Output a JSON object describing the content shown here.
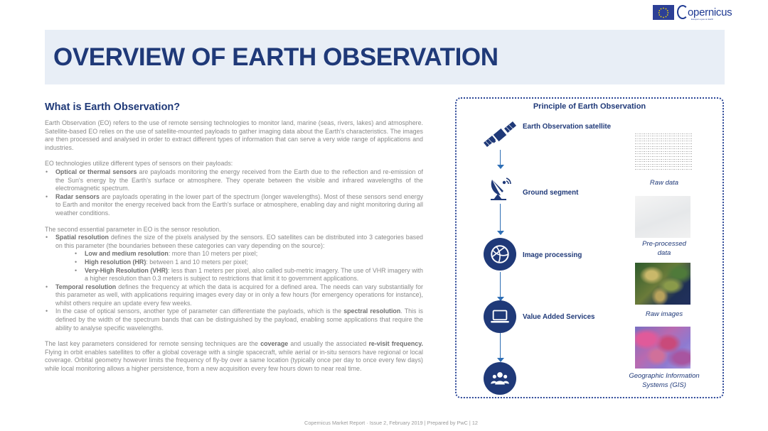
{
  "header": {
    "title": "OVERVIEW OF EARTH OBSERVATION",
    "logo_text": "opernicus",
    "logo_subtitle": "Europe's eyes on Earth"
  },
  "left": {
    "heading": "What is Earth Observation?",
    "intro": "Earth Observation (EO) refers to the use of remote sensing technologies to monitor land, marine (seas, rivers, lakes) and atmosphere. Satellite-based EO relies on the use of satellite-mounted payloads to gather imaging data about the Earth's characteristics. The images are then processed and analysed in order to extract different types of information that can serve a very wide range of applications and industries.",
    "sensors_intro": "EO technologies utilize different types of sensors on their payloads:",
    "sensors": [
      {
        "bold": "Optical or thermal sensors",
        "text": " are payloads monitoring the energy received from the Earth due to the reflection and re-emission of the Sun's energy by the Earth's surface or atmosphere. They operate between the visible and infrared wavelengths of the electromagnetic spectrum."
      },
      {
        "bold": "Radar sensors",
        "text": " are payloads operating in the lower part of the spectrum (longer wavelengths). Most of these sensors send energy to Earth and monitor the energy received back from the Earth's surface or atmosphere, enabling day and night monitoring during all weather conditions."
      }
    ],
    "resolution_intro": "The second essential parameter in EO is the sensor resolution.",
    "spatial": {
      "bold": "Spatial resolution",
      "text": " defines the size of the pixels analysed by the sensors. EO satellites can be distributed into 3 categories based on this parameter (the boundaries between these categories can vary depending on the source):"
    },
    "categories": [
      {
        "bold": "Low and medium resolution",
        "text": ": more than 10 meters per pixel;"
      },
      {
        "bold": "High resolution (HR)",
        "text": ": between 1 and 10 meters per pixel;"
      },
      {
        "bold": "Very-High Resolution (VHR)",
        "text": ": less than 1 meters per pixel, also called sub-metric imagery. The use of VHR imagery with a higher resolution than 0.3 meters is subject to restrictions that limit it to government applications."
      }
    ],
    "temporal": {
      "bold": "Temporal resolution",
      "text": " defines the frequency at which the data is acquired for a defined area. The needs can vary substantially for this parameter as well, with applications requiring images every day or in only a few hours (for emergency operations for instance), whilst others require an update every few weeks."
    },
    "spectral": {
      "pre": "In the case of optical sensors, another type of parameter can differentiate the payloads, which is the ",
      "bold": "spectral resolution",
      "text": ". This is defined by the width of the spectrum bands that can be distinguished by the payload, enabling some applications that require the ability to analyse specific wavelengths."
    },
    "last": {
      "pre": "The last key parameters considered for remote sensing techniques are the ",
      "bold1": "coverage",
      "mid": " and usually the associated ",
      "bold2": "re-visit frequency.",
      "text": " Flying in orbit enables satellites to offer a global coverage with a single spacecraft, while aerial or in-situ sensors have regional or local coverage. Orbital geometry however limits the frequency of fly-by over a same location (typically once per day to once every few days) while local monitoring allows a higher persistence, from a new acquisition every few hours down to near real time."
    }
  },
  "panel": {
    "title": "Principle of Earth Observation",
    "steps": [
      {
        "label": "Earth Observation satellite",
        "icon": "satellite-icon"
      },
      {
        "label": "Ground segment",
        "icon": "satellite-dish-icon"
      },
      {
        "label": "Image processing",
        "icon": "globe-network-icon"
      },
      {
        "label": "Value Added Services",
        "icon": "laptop-icon"
      },
      {
        "label": "",
        "icon": "users-icon"
      }
    ],
    "captions": {
      "raw_data": "Raw data",
      "preprocessed_1": "Pre-processed",
      "preprocessed_2": "data",
      "raw_images": "Raw images",
      "gis_1": "Geographic Information",
      "gis_2": "Systems (GIS)"
    },
    "colors": {
      "navy": "#1f3978",
      "arrow": "#2f6fb5"
    }
  },
  "footer": {
    "text": "Copernicus Market Report · Issue 2, February 2019 | Prepared by PwC |     12"
  }
}
